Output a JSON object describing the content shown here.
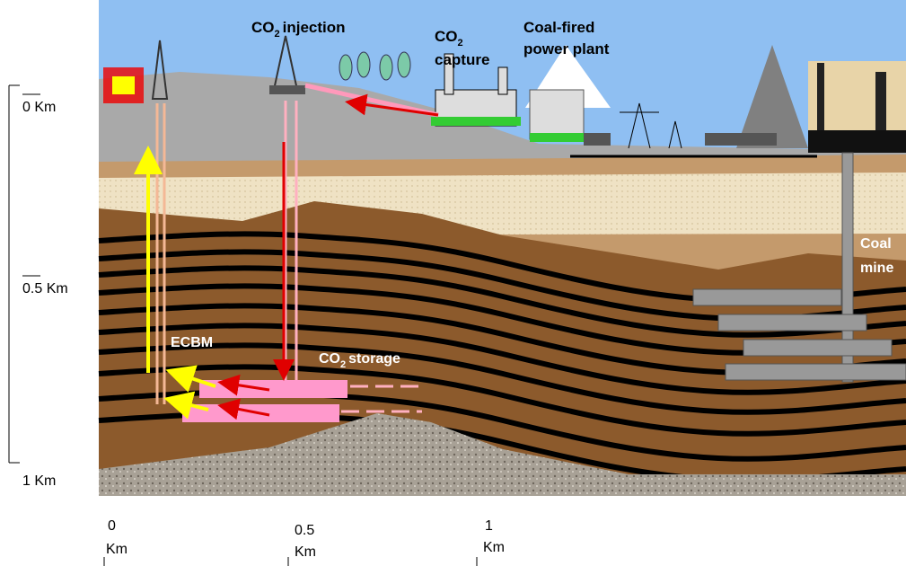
{
  "depth_scale": {
    "labels": [
      "0 Km",
      "0.5 Km",
      "1 Km"
    ]
  },
  "distance_scale": {
    "labels": [
      {
        "value": "0",
        "unit": "Km"
      },
      {
        "value": "0.5",
        "unit": "Km"
      },
      {
        "value": "1",
        "unit": "Km"
      }
    ]
  },
  "labels": {
    "co2_injection": {
      "formula": "CO",
      "sub": "2",
      "text": "injection"
    },
    "co2_capture": {
      "formula": "CO",
      "sub": "2",
      "text": "capture"
    },
    "power_plant": [
      "Coal-fired",
      "power plant"
    ],
    "coal_mine": [
      "Coal",
      "mine"
    ],
    "ecbm": "ECBM",
    "co2_storage": {
      "formula": "CO",
      "sub": "2",
      "text": "storage"
    }
  }
}
